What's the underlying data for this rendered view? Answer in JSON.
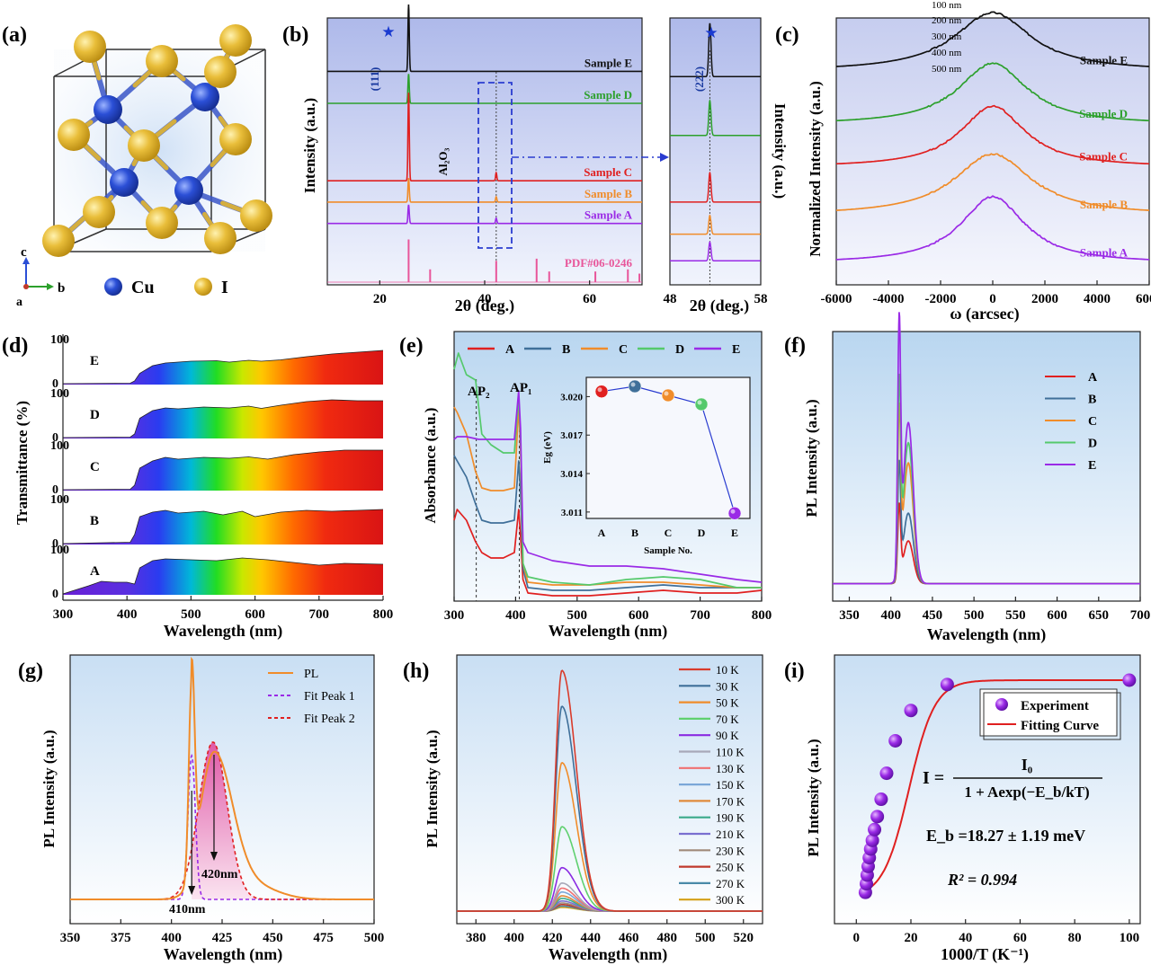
{
  "panels": {
    "a": {
      "label": "(a)",
      "legend": [
        "Cu",
        "I"
      ],
      "axes": [
        "c",
        "b",
        "a"
      ],
      "colors": {
        "Cu": "#2b4fd6",
        "I": "#e2b630",
        "bond": "#3a56c8"
      }
    },
    "b": {
      "label": "(b)",
      "ylabel": "Intensity (a.u.)",
      "xlabel": "2θ (deg.)",
      "annotations": [
        "(111)",
        "Al₂O₃",
        "★"
      ],
      "right": {
        "ylabel": "Intensity (a.u.)",
        "xlabel": "2θ (deg.)",
        "annotations": [
          "(222)",
          "★"
        ]
      }
    },
    "c": {
      "label": "(c)",
      "ylabel": "Normalized Intensity (a.u.)",
      "xlabel": "ω (arcsec)",
      "thickness_labels": [
        "100 nm",
        "200 nm",
        "300 nm",
        "400 nm",
        "500 nm"
      ]
    },
    "d": {
      "label": "(d)",
      "ylabel": "Transmittance (%)",
      "xlabel": "Wavelength (nm)"
    },
    "e": {
      "label": "(e)",
      "ylabel": "Absorbance (a.u.)",
      "xlabel": "Wavelength (nm)",
      "annotations": [
        "AP₂",
        "AP₁"
      ]
    },
    "f": {
      "label": "(f)",
      "ylabel": "PL Intensity (a.u.)",
      "xlabel": "Wavelength (nm)"
    },
    "g": {
      "label": "(g)",
      "ylabel": "PL Intensity (a.u.)",
      "xlabel": "Wavelength (nm)",
      "annotations": [
        "410nm",
        "420nm"
      ]
    },
    "h": {
      "label": "(h)",
      "ylabel": "PL Intensity (a.u.)",
      "xlabel": "Wavelength (nm)"
    },
    "i": {
      "label": "(i)",
      "ylabel": "PL Intensity (a.u.)",
      "xlabel": "1000/T (K⁻¹)",
      "equation": {
        "lhs": "I =",
        "numerator": "I₀",
        "denominator": "1 + Aexp(−E_b/kT)"
      },
      "eb": "E_b =18.27 ± 1.19 meV",
      "r2": "R² = 0.994"
    }
  },
  "chart_data": [
    {
      "id": "b",
      "type": "line",
      "xlabel": "2θ (deg.)",
      "ylabel": "Intensity (a.u.)",
      "xlim": [
        10,
        70
      ],
      "xticks": [
        20,
        40,
        60
      ],
      "series": [
        {
          "name": "Sample E",
          "color": "#111111",
          "baseline": 0.8,
          "peaks": [
            [
              25.5,
              0.25
            ]
          ]
        },
        {
          "name": "Sample D",
          "color": "#2ca02c",
          "baseline": 0.68,
          "peaks": [
            [
              25.5,
              0.11
            ]
          ]
        },
        {
          "name": "Sample C",
          "color": "#e02020",
          "baseline": 0.39,
          "peaks": [
            [
              25.5,
              0.33
            ],
            [
              42.2,
              0.03
            ]
          ]
        },
        {
          "name": "Sample B",
          "color": "#f08c2a",
          "baseline": 0.31,
          "peaks": [
            [
              25.5,
              0.09
            ],
            [
              42.2,
              0.02
            ]
          ]
        },
        {
          "name": "Sample A",
          "color": "#9a2ae6",
          "baseline": 0.23,
          "peaks": [
            [
              25.5,
              0.07
            ],
            [
              42.2,
              0.02
            ]
          ]
        }
      ],
      "reference": {
        "name": "PDF#06-0246",
        "color": "#e8559a",
        "lines": [
          [
            25.5,
            0.2
          ],
          [
            29.6,
            0.06
          ],
          [
            42.2,
            0.1
          ],
          [
            49.9,
            0.11
          ],
          [
            52.3,
            0.05
          ],
          [
            61.1,
            0.05
          ],
          [
            67.3,
            0.06
          ],
          [
            69.5,
            0.04
          ],
          [
            76.8,
            0.05
          ],
          [
            78.9,
            0.06
          ]
        ]
      }
    },
    {
      "id": "b-zoom",
      "type": "line",
      "xlabel": "2θ (deg.)",
      "ylabel": "Intensity (a.u.)",
      "xlim": [
        48,
        58
      ],
      "xticks": [
        48,
        58
      ],
      "series": [
        {
          "name": "Sample E",
          "color": "#111111",
          "baseline": 0.78,
          "peak": [
            52.4,
            0.2
          ]
        },
        {
          "name": "Sample D",
          "color": "#2ca02c",
          "baseline": 0.56,
          "peak": [
            52.4,
            0.13
          ]
        },
        {
          "name": "Sample C",
          "color": "#e02020",
          "baseline": 0.31,
          "peak": [
            52.4,
            0.11
          ]
        },
        {
          "name": "Sample B",
          "color": "#f08c2a",
          "baseline": 0.19,
          "peak": [
            52.4,
            0.07
          ]
        },
        {
          "name": "Sample A",
          "color": "#9a2ae6",
          "baseline": 0.09,
          "peak": [
            52.4,
            0.07
          ]
        }
      ]
    },
    {
      "id": "c",
      "type": "line",
      "xlabel": "ω (arcsec)",
      "ylabel": "Normalized Intensity (a.u.)",
      "xlim": [
        -6000,
        6000
      ],
      "xticks": [
        -6000,
        -4000,
        -2000,
        0,
        2000,
        4000,
        6000
      ],
      "series": [
        {
          "name": "Sample E",
          "color": "#111111",
          "baseline": 0.8,
          "amp": 0.22,
          "width": 1800
        },
        {
          "name": "Sample D",
          "color": "#2ca02c",
          "baseline": 0.6,
          "amp": 0.23,
          "width": 1600
        },
        {
          "name": "Sample C",
          "color": "#e02020",
          "baseline": 0.44,
          "amp": 0.23,
          "width": 1500
        },
        {
          "name": "Sample B",
          "color": "#f08c2a",
          "baseline": 0.26,
          "amp": 0.23,
          "width": 1800
        },
        {
          "name": "Sample A",
          "color": "#9a2ae6",
          "baseline": 0.08,
          "amp": 0.25,
          "width": 1500
        }
      ]
    },
    {
      "id": "d",
      "type": "area",
      "xlabel": "Wavelength (nm)",
      "ylabel": "Transmittance (%)",
      "xlim": [
        300,
        800
      ],
      "xticks": [
        300,
        400,
        500,
        600,
        700,
        800
      ],
      "subplot_ticks": [
        "0",
        "100"
      ],
      "series": [
        {
          "name": "E",
          "x": [
            300,
            405,
            412,
            420,
            440,
            460,
            500,
            540,
            560,
            590,
            610,
            640,
            680,
            720,
            760,
            800
          ],
          "y": [
            2,
            3,
            8,
            25,
            42,
            48,
            52,
            53,
            50,
            54,
            52,
            55,
            62,
            68,
            72,
            76
          ]
        },
        {
          "name": "D",
          "x": [
            300,
            405,
            412,
            420,
            440,
            460,
            480,
            520,
            560,
            590,
            610,
            640,
            680,
            720,
            760,
            800
          ],
          "y": [
            2,
            3,
            10,
            45,
            62,
            68,
            66,
            70,
            68,
            72,
            67,
            74,
            82,
            86,
            84,
            84
          ]
        },
        {
          "name": "C",
          "x": [
            300,
            405,
            412,
            420,
            440,
            460,
            480,
            520,
            560,
            590,
            620,
            660,
            700,
            740,
            800
          ],
          "y": [
            2,
            3,
            12,
            50,
            66,
            74,
            70,
            74,
            72,
            75,
            70,
            80,
            86,
            90,
            90
          ]
        },
        {
          "name": "B",
          "x": [
            300,
            405,
            412,
            420,
            440,
            460,
            480,
            520,
            550,
            580,
            600,
            640,
            680,
            720,
            760,
            800
          ],
          "y": [
            2,
            5,
            22,
            62,
            72,
            76,
            70,
            74,
            66,
            74,
            62,
            72,
            76,
            74,
            76,
            78
          ]
        },
        {
          "name": "A",
          "x": [
            300,
            340,
            360,
            380,
            400,
            412,
            420,
            440,
            460,
            500,
            540,
            580,
            620,
            660,
            700,
            740,
            800
          ],
          "y": [
            2,
            20,
            30,
            28,
            28,
            24,
            60,
            76,
            80,
            78,
            76,
            82,
            78,
            72,
            66,
            70,
            68
          ]
        }
      ]
    },
    {
      "id": "e",
      "type": "line",
      "xlabel": "Wavelength (nm)",
      "ylabel": "Absorbance (a.u.)",
      "xlim": [
        300,
        800
      ],
      "xticks": [
        300,
        400,
        500,
        600,
        700,
        800
      ],
      "series": [
        {
          "name": "A",
          "color": "#e02020",
          "x": [
            300,
            305,
            320,
            335,
            345,
            360,
            380,
            398,
            405,
            408,
            412,
            420,
            460,
            520,
            580,
            640,
            700,
            760,
            800
          ],
          "y": [
            0.3,
            0.34,
            0.3,
            0.22,
            0.18,
            0.16,
            0.16,
            0.18,
            0.34,
            0.24,
            0.08,
            0.03,
            0.02,
            0.02,
            0.03,
            0.04,
            0.03,
            0.03,
            0.04
          ]
        },
        {
          "name": "B",
          "color": "#3f6f99",
          "x": [
            300,
            305,
            320,
            335,
            345,
            360,
            380,
            398,
            405,
            408,
            412,
            420,
            460,
            520,
            580,
            640,
            700,
            760,
            800
          ],
          "y": [
            0.54,
            0.52,
            0.46,
            0.36,
            0.3,
            0.29,
            0.29,
            0.3,
            0.52,
            0.4,
            0.12,
            0.05,
            0.04,
            0.04,
            0.05,
            0.06,
            0.05,
            0.05,
            0.05
          ]
        },
        {
          "name": "C",
          "color": "#f08c2a",
          "x": [
            300,
            305,
            320,
            335,
            345,
            360,
            380,
            398,
            405,
            408,
            412,
            420,
            460,
            520,
            580,
            640,
            700,
            760,
            800
          ],
          "y": [
            0.72,
            0.7,
            0.62,
            0.48,
            0.42,
            0.41,
            0.41,
            0.42,
            0.72,
            0.56,
            0.14,
            0.07,
            0.06,
            0.06,
            0.07,
            0.07,
            0.06,
            0.05,
            0.05
          ]
        },
        {
          "name": "D",
          "color": "#55c96c",
          "x": [
            300,
            307,
            320,
            335,
            345,
            360,
            380,
            398,
            405,
            408,
            412,
            420,
            460,
            520,
            580,
            640,
            700,
            760,
            800
          ],
          "y": [
            0.86,
            0.92,
            0.84,
            0.82,
            0.62,
            0.58,
            0.55,
            0.55,
            0.76,
            0.6,
            0.14,
            0.09,
            0.07,
            0.06,
            0.08,
            0.09,
            0.08,
            0.05,
            0.05
          ]
        },
        {
          "name": "E",
          "color": "#9a2ae6",
          "x": [
            300,
            305,
            320,
            340,
            360,
            380,
            398,
            405,
            408,
            412,
            420,
            460,
            520,
            580,
            640,
            700,
            760,
            800
          ],
          "y": [
            0.6,
            0.61,
            0.61,
            0.6,
            0.6,
            0.6,
            0.6,
            0.78,
            0.64,
            0.22,
            0.18,
            0.15,
            0.13,
            0.13,
            0.12,
            0.1,
            0.08,
            0.07
          ]
        }
      ],
      "inset": {
        "xlabel": "Sample No.",
        "ylabel": "Eg (eV)",
        "categories": [
          "A",
          "B",
          "C",
          "D",
          "E"
        ],
        "values": [
          3.0204,
          3.0208,
          3.0201,
          3.0194,
          3.0109
        ],
        "yticks": [
          3.011,
          3.014,
          3.017,
          3.02
        ],
        "ylim": [
          3.0105,
          3.0215
        ],
        "colors": [
          "#e02020",
          "#3f6f99",
          "#f08c2a",
          "#55c96c",
          "#9a2ae6"
        ]
      }
    },
    {
      "id": "f",
      "type": "line",
      "xlabel": "Wavelength (nm)",
      "ylabel": "PL Intensity (a.u.)",
      "xlim": [
        330,
        700
      ],
      "xticks": [
        350,
        400,
        450,
        500,
        550,
        600,
        650,
        700
      ],
      "series": [
        {
          "name": "A",
          "color": "#e02020",
          "p1": 0.29,
          "p2": 0.17
        },
        {
          "name": "B",
          "color": "#3f6f99",
          "p1": 0.44,
          "p2": 0.28
        },
        {
          "name": "C",
          "color": "#f08c2a",
          "p1": 0.63,
          "p2": 0.48
        },
        {
          "name": "D",
          "color": "#55c96c",
          "p1": 0.73,
          "p2": 0.56
        },
        {
          "name": "E",
          "color": "#9a2ae6",
          "p1": 0.96,
          "p2": 0.64
        }
      ]
    },
    {
      "id": "g",
      "type": "line",
      "xlabel": "Wavelength (nm)",
      "ylabel": "PL Intensity (a.u.)",
      "xlim": [
        350,
        500
      ],
      "xticks": [
        350,
        375,
        400,
        425,
        450,
        475,
        500
      ],
      "series": [
        {
          "name": "PL",
          "color": "#f08c2a",
          "style": "solid"
        },
        {
          "name": "Fit Peak 1",
          "color": "#9a2ae6",
          "style": "dashed",
          "center": 410,
          "sigma": 1.8,
          "amp": 0.64
        },
        {
          "name": "Fit Peak 2",
          "color": "#e02020",
          "style": "dashed",
          "center": 420.5,
          "sigma": 7,
          "amp": 0.7
        }
      ]
    },
    {
      "id": "h",
      "type": "line",
      "xlabel": "Wavelength (nm)",
      "ylabel": "PL Intensity (a.u.)",
      "xlim": [
        370,
        530
      ],
      "xticks": [
        380,
        400,
        420,
        440,
        460,
        480,
        500,
        520
      ],
      "series": [
        {
          "name": "10 K",
          "color": "#d93b2b",
          "amp": 0.94
        },
        {
          "name": "30 K",
          "color": "#3f6f99",
          "amp": 0.8
        },
        {
          "name": "50 K",
          "color": "#f08c2a",
          "amp": 0.58
        },
        {
          "name": "70 K",
          "color": "#5fd06f",
          "amp": 0.33
        },
        {
          "name": "90 K",
          "color": "#8a2be2",
          "amp": 0.17
        },
        {
          "name": "110 K",
          "color": "#a8a8b8",
          "amp": 0.11
        },
        {
          "name": "130 K",
          "color": "#f07070",
          "amp": 0.09
        },
        {
          "name": "150 K",
          "color": "#7ba7d8",
          "amp": 0.075
        },
        {
          "name": "170 K",
          "color": "#e08a3a",
          "amp": 0.06
        },
        {
          "name": "190 K",
          "color": "#3aaa8a",
          "amp": 0.05
        },
        {
          "name": "210 K",
          "color": "#7a6fd0",
          "amp": 0.04
        },
        {
          "name": "230 K",
          "color": "#a08a7a",
          "amp": 0.032
        },
        {
          "name": "250 K",
          "color": "#c0392b",
          "amp": 0.026
        },
        {
          "name": "270 K",
          "color": "#4a8aa8",
          "amp": 0.02
        },
        {
          "name": "300 K",
          "color": "#d4a017",
          "amp": 0.015
        }
      ]
    },
    {
      "id": "i",
      "type": "scatter",
      "xlabel": "1000/T (K⁻¹)",
      "ylabel": "PL Intensity (a.u.)",
      "xlim": [
        -8,
        104
      ],
      "xticks": [
        0,
        20,
        40,
        60,
        80,
        100
      ],
      "series": [
        {
          "name": "Experiment",
          "color": "#9a2ae6",
          "x": [
            3.33,
            3.7,
            4.0,
            4.35,
            4.76,
            5.26,
            5.88,
            6.67,
            7.69,
            9.09,
            11.1,
            14.3,
            20.0,
            33.3,
            100.0
          ],
          "y": [
            0.02,
            0.06,
            0.1,
            0.14,
            0.18,
            0.22,
            0.26,
            0.31,
            0.37,
            0.45,
            0.57,
            0.72,
            0.86,
            0.98,
            1.0
          ]
        },
        {
          "name": "Fitting Curve",
          "color": "#e02020",
          "Eb_meV": 18.27,
          "A": 60
        }
      ]
    }
  ]
}
